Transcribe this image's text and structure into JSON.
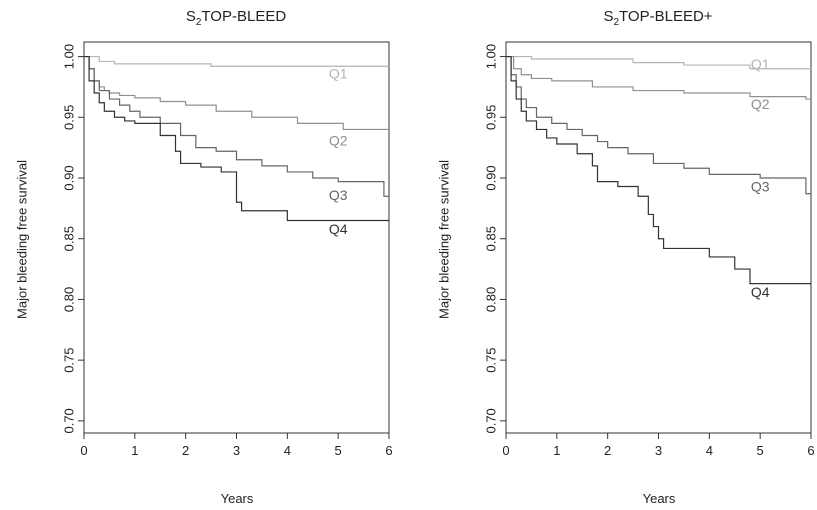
{
  "chart_data": [
    {
      "type": "line",
      "title_main": "TOP-BLEED",
      "title_prefix": "S",
      "title_sub": "2",
      "xlabel": "Years",
      "ylabel": "Major bleeding free survival",
      "xlim": [
        0,
        6
      ],
      "ylim": [
        0.69,
        1.012
      ],
      "xticks": [
        "0",
        "1",
        "2",
        "3",
        "4",
        "5",
        "6"
      ],
      "yticks": [
        "0.70",
        "0.75",
        "0.80",
        "0.85",
        "0.90",
        "0.95",
        "1.00"
      ],
      "grid": false,
      "legend": "inline",
      "series": [
        {
          "name": "Q1",
          "color": "#b4b4b4",
          "x": [
            0,
            0.3,
            0.6,
            2.5,
            6.0
          ],
          "y": [
            1.0,
            0.996,
            0.994,
            0.992,
            0.992
          ]
        },
        {
          "name": "Q2",
          "color": "#909090",
          "x": [
            0,
            0.1,
            0.2,
            0.3,
            0.4,
            0.5,
            0.7,
            1.0,
            1.5,
            2.0,
            2.6,
            3.3,
            4.2,
            5.1,
            6.0
          ],
          "y": [
            1.0,
            0.99,
            0.98,
            0.975,
            0.972,
            0.97,
            0.968,
            0.966,
            0.963,
            0.96,
            0.955,
            0.95,
            0.945,
            0.94,
            0.94
          ]
        },
        {
          "name": "Q3",
          "color": "#666666",
          "x": [
            0,
            0.1,
            0.2,
            0.3,
            0.5,
            0.7,
            0.9,
            1.1,
            1.5,
            1.9,
            2.2,
            2.6,
            3.0,
            3.5,
            4.0,
            4.5,
            5.0,
            5.8,
            5.9,
            6.0
          ],
          "y": [
            1.0,
            0.99,
            0.98,
            0.972,
            0.965,
            0.96,
            0.955,
            0.95,
            0.945,
            0.935,
            0.925,
            0.922,
            0.915,
            0.91,
            0.905,
            0.9,
            0.897,
            0.897,
            0.885,
            0.885
          ]
        },
        {
          "name": "Q4",
          "color": "#333333",
          "x": [
            0,
            0.1,
            0.2,
            0.3,
            0.4,
            0.6,
            0.8,
            1.0,
            1.5,
            1.8,
            1.9,
            2.3,
            2.7,
            3.0,
            3.1,
            3.5,
            4.0,
            6.0
          ],
          "y": [
            1.0,
            0.98,
            0.97,
            0.962,
            0.955,
            0.95,
            0.947,
            0.945,
            0.935,
            0.922,
            0.912,
            0.909,
            0.905,
            0.88,
            0.873,
            0.873,
            0.865,
            0.865
          ]
        }
      ],
      "labels": [
        {
          "text": "Q1",
          "x": 5.0,
          "y": 0.985
        },
        {
          "text": "Q2",
          "x": 5.0,
          "y": 0.93
        },
        {
          "text": "Q3",
          "x": 5.0,
          "y": 0.885
        },
        {
          "text": "Q4",
          "x": 5.0,
          "y": 0.857
        }
      ]
    },
    {
      "type": "line",
      "title_main": "TOP-BLEED+",
      "title_prefix": "S",
      "title_sub": "2",
      "xlabel": "Years",
      "ylabel": "Major bleeding free survival",
      "xlim": [
        0,
        6
      ],
      "ylim": [
        0.69,
        1.012
      ],
      "xticks": [
        "0",
        "1",
        "2",
        "3",
        "4",
        "5",
        "6"
      ],
      "yticks": [
        "0.70",
        "0.75",
        "0.80",
        "0.85",
        "0.90",
        "0.95",
        "1.00"
      ],
      "grid": false,
      "legend": "inline",
      "series": [
        {
          "name": "Q1",
          "color": "#b4b4b4",
          "x": [
            0,
            0.5,
            2.5,
            3.5,
            4.8,
            6.0
          ],
          "y": [
            1.0,
            0.998,
            0.995,
            0.993,
            0.99,
            0.99
          ]
        },
        {
          "name": "Q2",
          "color": "#909090",
          "x": [
            0,
            0.15,
            0.3,
            0.5,
            0.9,
            1.7,
            2.5,
            3.5,
            4.8,
            5.9,
            6.0
          ],
          "y": [
            1.0,
            0.99,
            0.985,
            0.982,
            0.98,
            0.975,
            0.972,
            0.97,
            0.967,
            0.965,
            0.965
          ]
        },
        {
          "name": "Q3",
          "color": "#666666",
          "x": [
            0,
            0.1,
            0.2,
            0.3,
            0.4,
            0.6,
            0.9,
            1.2,
            1.5,
            1.8,
            2.0,
            2.4,
            2.9,
            3.5,
            4.0,
            5.0,
            5.9,
            6.0
          ],
          "y": [
            1.0,
            0.985,
            0.975,
            0.965,
            0.958,
            0.95,
            0.945,
            0.94,
            0.935,
            0.93,
            0.925,
            0.92,
            0.912,
            0.908,
            0.903,
            0.9,
            0.887,
            0.887
          ]
        },
        {
          "name": "Q4",
          "color": "#333333",
          "x": [
            0,
            0.1,
            0.2,
            0.3,
            0.4,
            0.6,
            0.8,
            1.0,
            1.4,
            1.7,
            1.8,
            2.2,
            2.6,
            2.8,
            2.9,
            3.0,
            3.1,
            3.5,
            4.0,
            4.5,
            4.8,
            6.0
          ],
          "y": [
            1.0,
            0.98,
            0.965,
            0.955,
            0.947,
            0.94,
            0.933,
            0.928,
            0.92,
            0.91,
            0.897,
            0.893,
            0.885,
            0.87,
            0.86,
            0.85,
            0.842,
            0.842,
            0.835,
            0.825,
            0.813,
            0.813
          ]
        }
      ],
      "labels": [
        {
          "text": "Q1",
          "x": 5.0,
          "y": 0.993
        },
        {
          "text": "Q2",
          "x": 5.0,
          "y": 0.96
        },
        {
          "text": "Q3",
          "x": 5.0,
          "y": 0.892
        },
        {
          "text": "Q4",
          "x": 5.0,
          "y": 0.805
        }
      ]
    }
  ]
}
